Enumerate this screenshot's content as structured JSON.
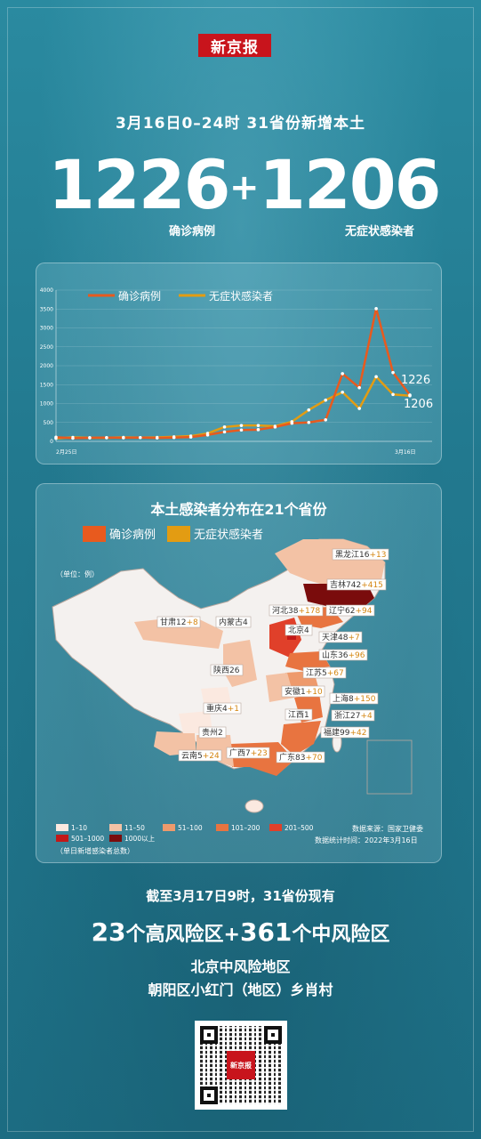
{
  "logo_text": "新京报",
  "headline": "3月16日0–24时    31省份新增本土",
  "confirmed": "1226",
  "plus": "+",
  "asymptomatic": "1206",
  "confirmed_label": "确诊病例",
  "asymptomatic_label": "无症状感染者",
  "colors": {
    "confirmed": "#e85a1e",
    "asymptomatic": "#e39c12"
  },
  "chart_data": {
    "type": "line",
    "x_start_label": "2月25日",
    "x_end_label": "3月16日",
    "ylim": [
      0,
      4000
    ],
    "yticks": [
      "0",
      "500",
      "1000",
      "1500",
      "2000",
      "2500",
      "3000",
      "3500",
      "4000"
    ],
    "series": [
      {
        "name": "确诊病例",
        "values": [
          110,
          85,
          95,
          100,
          95,
          100,
          90,
          100,
          115,
          170,
          250,
          300,
          310,
          380,
          480,
          500,
          570,
          1790,
          1420,
          3510,
          1820,
          1226
        ]
      },
      {
        "name": "无症状感染者",
        "values": [
          80,
          105,
          95,
          95,
          105,
          100,
          105,
          120,
          140,
          210,
          380,
          420,
          420,
          400,
          520,
          830,
          1090,
          1300,
          870,
          1710,
          1240,
          1206
        ]
      }
    ],
    "end_labels": [
      "1226",
      "1206"
    ]
  },
  "map": {
    "title": "本土感染者分布在21个省份",
    "unit": "（单位：例）",
    "legend_confirmed": "确诊病例",
    "legend_asymptomatic": "无症状感染者",
    "provinces": [
      {
        "name": "黑龙江",
        "confirmed": "16",
        "asym": "+13"
      },
      {
        "name": "吉林",
        "confirmed": "742",
        "asym": "+415"
      },
      {
        "name": "甘肃",
        "confirmed": "12",
        "asym": "+8"
      },
      {
        "name": "内蒙古",
        "confirmed": "4",
        "asym": ""
      },
      {
        "name": "河北",
        "confirmed": "38",
        "asym": "+178"
      },
      {
        "name": "辽宁",
        "confirmed": "62",
        "asym": "+94"
      },
      {
        "name": "北京",
        "confirmed": "4",
        "asym": ""
      },
      {
        "name": "天津",
        "confirmed": "48",
        "asym": "+7"
      },
      {
        "name": "山东",
        "confirmed": "36",
        "asym": "+96"
      },
      {
        "name": "陕西",
        "confirmed": "26",
        "asym": ""
      },
      {
        "name": "江苏",
        "confirmed": "5",
        "asym": "+67"
      },
      {
        "name": "安徽",
        "confirmed": "1",
        "asym": "+10"
      },
      {
        "name": "上海",
        "confirmed": "8",
        "asym": "+150"
      },
      {
        "name": "重庆",
        "confirmed": "4",
        "asym": "+1"
      },
      {
        "name": "江西",
        "confirmed": "1",
        "asym": ""
      },
      {
        "name": "浙江",
        "confirmed": "27",
        "asym": "+4"
      },
      {
        "name": "贵州",
        "confirmed": "2",
        "asym": ""
      },
      {
        "name": "福建",
        "confirmed": "99",
        "asym": "+42"
      },
      {
        "name": "云南",
        "confirmed": "5",
        "asym": "+24"
      },
      {
        "name": "广西",
        "confirmed": "7",
        "asym": "+23"
      },
      {
        "name": "广东",
        "confirmed": "83",
        "asym": "+70"
      }
    ],
    "scale": [
      {
        "label": "1–10",
        "color": "#fbe9e0"
      },
      {
        "label": "11–50",
        "color": "#f3c2a5"
      },
      {
        "label": "51–100",
        "color": "#ee9a6c"
      },
      {
        "label": "101–200",
        "color": "#e87440"
      },
      {
        "label": "201–500",
        "color": "#e0402a"
      },
      {
        "label": "501–1000",
        "color": "#c21818"
      },
      {
        "label": "1000以上",
        "color": "#7a0c0c"
      }
    ],
    "scale_note": "（单日新增感染者总数）",
    "source": "数据来源：国家卫健委",
    "stat_time": "数据统计时间：2022年3月16日"
  },
  "bottom": {
    "line1": "截至3月17日9时，31省份现有",
    "high_count": "23",
    "high_text": "个高风险区+",
    "mid_count": "361",
    "mid_text": "个中风险区",
    "line3": "北京中风险地区",
    "line4": "朝阳区小红门（地区）乡肖村"
  }
}
